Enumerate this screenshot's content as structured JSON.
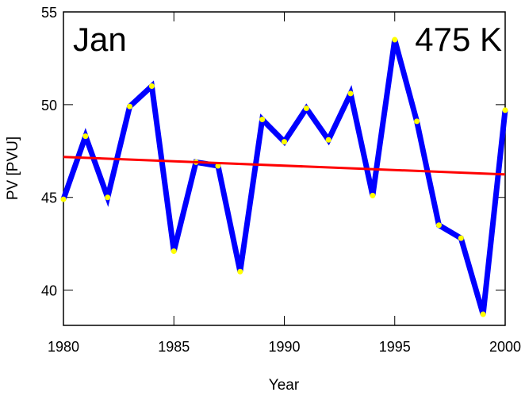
{
  "chart_data": {
    "type": "line",
    "annotations": [
      "Jan",
      "475 K"
    ],
    "xlabel": "Year",
    "ylabel": "PV [PVU]",
    "x": [
      1980,
      1981,
      1982,
      1983,
      1984,
      1985,
      1986,
      1987,
      1988,
      1989,
      1990,
      1991,
      1992,
      1993,
      1994,
      1995,
      1996,
      1997,
      1998,
      1999,
      2000
    ],
    "series": [
      {
        "color": "#0000ff",
        "marker_color": "#ffff00",
        "values": [
          44.9,
          48.3,
          45.0,
          49.9,
          51.0,
          42.1,
          46.9,
          46.7,
          41.0,
          49.2,
          48.0,
          49.8,
          48.1,
          50.6,
          45.1,
          53.5,
          49.1,
          43.5,
          42.8,
          38.7,
          49.7
        ]
      },
      {
        "color": "#ff0000",
        "x": [
          1980,
          2000
        ],
        "values": [
          47.18,
          46.24
        ]
      }
    ],
    "xlim": [
      1980,
      2000
    ],
    "xticks": [
      1980,
      1985,
      1990,
      1995,
      2000
    ],
    "ylim": [
      38.1,
      55
    ],
    "yticks": [
      40,
      45,
      50,
      55
    ]
  }
}
